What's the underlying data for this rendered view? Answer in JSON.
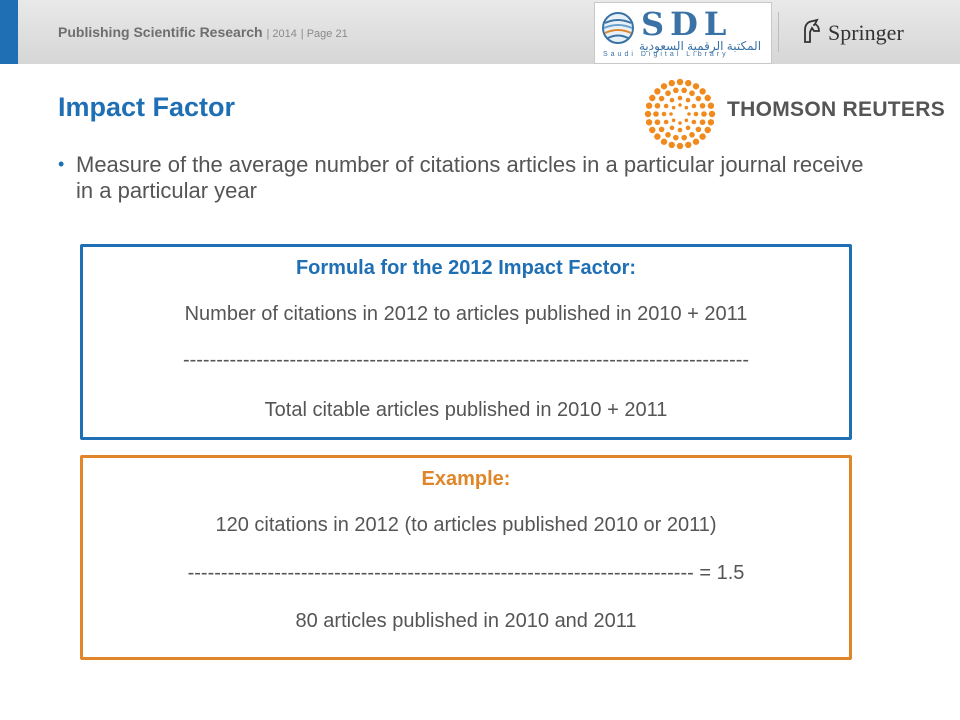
{
  "header": {
    "title": "Publishing Scientific Research",
    "year": "| 2014",
    "page": "| Page 21",
    "logos": {
      "sdl": {
        "letters": "SDL",
        "arabic": "المكتبة الرقمية السعودية",
        "subtitle": "Saudi Digital Library"
      },
      "springer": {
        "name": "Springer"
      }
    }
  },
  "slide": {
    "title": "Impact Factor",
    "thomson_reuters": "THOMSON REUTERS",
    "bullet": "Measure of the average number of citations articles in a particular journal receive in a particular year"
  },
  "formula_box": {
    "heading": "Formula for the 2012 Impact Factor:",
    "numerator": "Number of citations in 2012 to articles published in 2010 + 2011",
    "divider": "-------------------------------------------------------------------------------------",
    "denominator": "Total citable articles published in 2010 + 2011"
  },
  "example_box": {
    "heading": "Example:",
    "numerator": "120 citations in 2012 (to articles published 2010 or 2011)",
    "divider": "----------------------------------------------------------------------------  = 1.5",
    "denominator": "80 articles published in 2010 and 2011"
  },
  "colors": {
    "accent_blue": "#1f6fb5",
    "accent_orange": "#e08628",
    "text_gray": "#555555"
  }
}
